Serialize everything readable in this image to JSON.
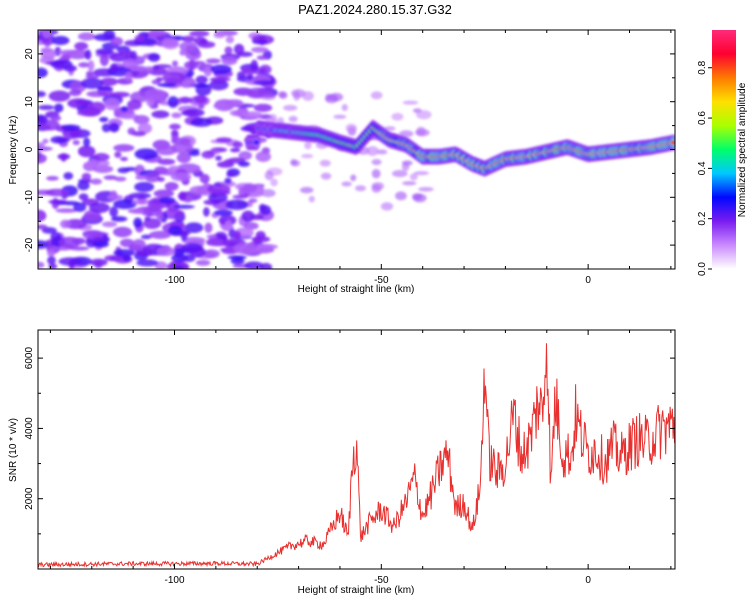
{
  "title": "PAZ1.2024.280.15.37.G32",
  "chart_data": [
    {
      "type": "heatmap",
      "xlabel": "Height of straight line (km)",
      "ylabel": "Frequency (Hz)",
      "xlim": [
        -133,
        21
      ],
      "ylim": [
        -25,
        25
      ],
      "xticks": [
        -100,
        -50,
        0
      ],
      "yticks": [
        -20,
        -10,
        0,
        10,
        20
      ],
      "colorbar": {
        "label": "Normalized spectral amplitude",
        "range": [
          0,
          0.95
        ],
        "ticks": [
          "0.0",
          "0.2",
          "0.4",
          "0.6",
          "0.8"
        ],
        "colors": [
          "#ffffff",
          "#ca8aff",
          "#7a1cf0",
          "#0008ff",
          "#00c8ff",
          "#00ff6a",
          "#aaff00",
          "#ffe000",
          "#ff7a00",
          "#ff0030",
          "#ff2a7a"
        ]
      },
      "ridge": {
        "x": [
          -80,
          -75,
          -70,
          -65,
          -60,
          -56,
          -52,
          -48,
          -44,
          -40,
          -36,
          -32,
          -28,
          -25,
          -20,
          -15,
          -10,
          -5,
          0,
          5,
          10,
          15,
          21
        ],
        "y": [
          4.5,
          4,
          3.5,
          3,
          1.5,
          0.5,
          4.5,
          2,
          1,
          -1.5,
          -1.5,
          -1,
          -3,
          -4,
          -2,
          -1.5,
          -0.5,
          0.5,
          -1,
          -0.5,
          0,
          0.5,
          1.5
        ]
      }
    },
    {
      "type": "line",
      "xlabel": "Height of straight line (km)",
      "ylabel": "SNR (10 * v/v)",
      "xlim": [
        -133,
        21
      ],
      "ylim": [
        0,
        6800
      ],
      "xticks": [
        -100,
        -50,
        0
      ],
      "yticks": [
        2000,
        4000,
        6000
      ],
      "series": [
        {
          "color": "#e8312f",
          "x": [
            -133,
            -120,
            -110,
            -100,
            -90,
            -80,
            -76,
            -72,
            -68,
            -64,
            -60,
            -58,
            -57,
            -56,
            -55,
            -53,
            -50,
            -47,
            -44,
            -42,
            -40,
            -38,
            -36,
            -34,
            -32,
            -30,
            -28,
            -26,
            -25,
            -24,
            -22,
            -20,
            -18,
            -16,
            -14,
            -12,
            -11,
            -10,
            -9,
            -8,
            -7,
            -6,
            -5,
            -4,
            -3,
            -2,
            0,
            2,
            4,
            6,
            8,
            10,
            12,
            14,
            16,
            18,
            21
          ],
          "y": [
            120,
            140,
            150,
            150,
            160,
            140,
            400,
            650,
            800,
            700,
            1600,
            900,
            3000,
            3700,
            900,
            1300,
            1700,
            1200,
            1900,
            2600,
            1500,
            2100,
            2800,
            3300,
            1700,
            1900,
            1100,
            2400,
            5900,
            3200,
            2700,
            3000,
            4400,
            3200,
            3700,
            4800,
            4300,
            6800,
            2300,
            4900,
            4100,
            3200,
            3300,
            3200,
            4400,
            3900,
            3300,
            3400,
            3000,
            3500,
            3200,
            3500,
            3700,
            3600,
            3800,
            4000,
            4100
          ]
        }
      ]
    }
  ]
}
